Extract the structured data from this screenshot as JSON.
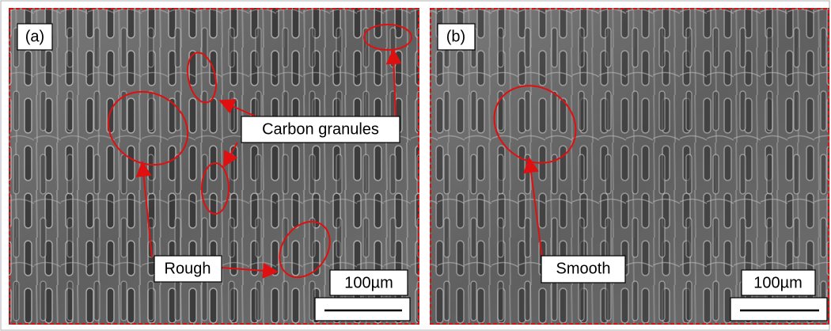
{
  "panels": [
    {
      "label": "(a)",
      "callouts": [
        {
          "text": "Carbon granules"
        },
        {
          "text": "Rough"
        }
      ],
      "scale": "100µm"
    },
    {
      "label": "(b)",
      "callouts": [
        {
          "text": "Smooth"
        }
      ],
      "scale": "100µm"
    }
  ]
}
